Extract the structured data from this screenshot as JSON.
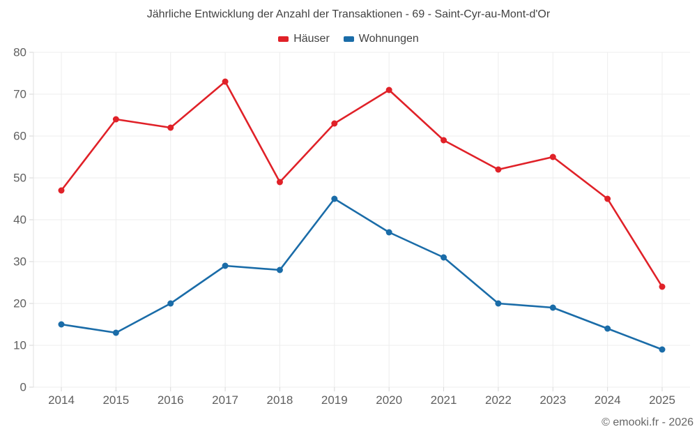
{
  "footer": "© emooki.fr - 2026",
  "chart_data": {
    "type": "line",
    "title": "Jährliche Entwicklung der Anzahl der Transaktionen - 69 - Saint-Cyr-au-Mont-d'Or",
    "categories": [
      "2014",
      "2015",
      "2016",
      "2017",
      "2018",
      "2019",
      "2020",
      "2021",
      "2022",
      "2023",
      "2024",
      "2025"
    ],
    "series": [
      {
        "key": "hauser",
        "name": "Häuser",
        "color": "#e02128",
        "values": [
          47,
          64,
          62,
          73,
          49,
          63,
          71,
          59,
          52,
          55,
          45,
          24
        ]
      },
      {
        "key": "wohnungen",
        "name": "Wohnungen",
        "color": "#1a6ca8",
        "values": [
          15,
          13,
          20,
          29,
          28,
          45,
          37,
          31,
          20,
          19,
          14,
          9
        ]
      }
    ],
    "xlabel": "",
    "ylabel": "",
    "ylim": [
      0,
      80
    ],
    "ytick_step": 10,
    "yticks": [
      "0",
      "10",
      "20",
      "30",
      "40",
      "50",
      "60",
      "70",
      "80"
    ],
    "grid": true,
    "legend_position": "top"
  },
  "style": {
    "grid_color": "#ededed",
    "axis_line_color": "#e2e2e2",
    "tick_color": "#d6d6d6",
    "tick_label_color": "#5f5f5f",
    "title_color": "#424242",
    "background": "#ffffff"
  }
}
